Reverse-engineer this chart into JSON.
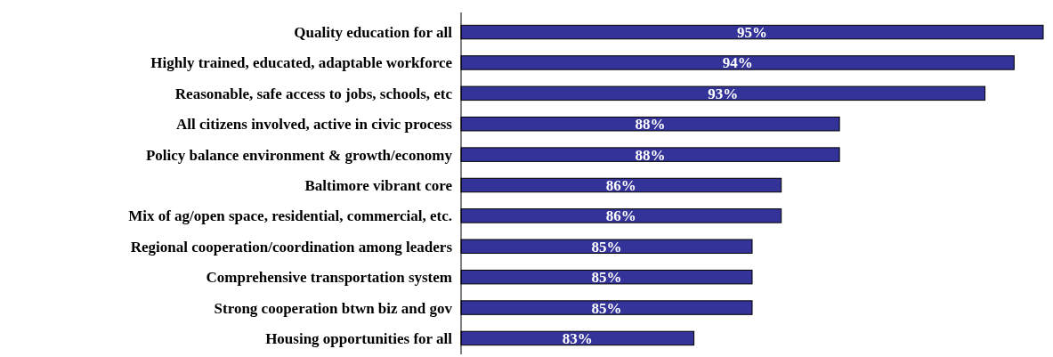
{
  "chart_data": {
    "type": "bar",
    "orientation": "horizontal",
    "categories": [
      "Quality education for all",
      "Highly trained, educated, adaptable workforce",
      "Reasonable, safe access to jobs, schools, etc",
      "All citizens involved, active in civic process",
      "Policy balance environment & growth/economy",
      "Baltimore vibrant core",
      "Mix of ag/open space, residential, commercial, etc.",
      "Regional cooperation/coordination among leaders",
      "Comprehensive transportation system",
      "Strong cooperation btwn biz and gov",
      "Housing opportunities for all"
    ],
    "values": [
      95,
      94,
      93,
      88,
      88,
      86,
      86,
      85,
      85,
      85,
      83
    ],
    "value_labels": [
      "95%",
      "94%",
      "93%",
      "88%",
      "88%",
      "86%",
      "86%",
      "85%",
      "85%",
      "85%",
      "83%"
    ],
    "color": "#333399",
    "xlim": [
      75,
      95
    ],
    "tick_labels": "y"
  }
}
